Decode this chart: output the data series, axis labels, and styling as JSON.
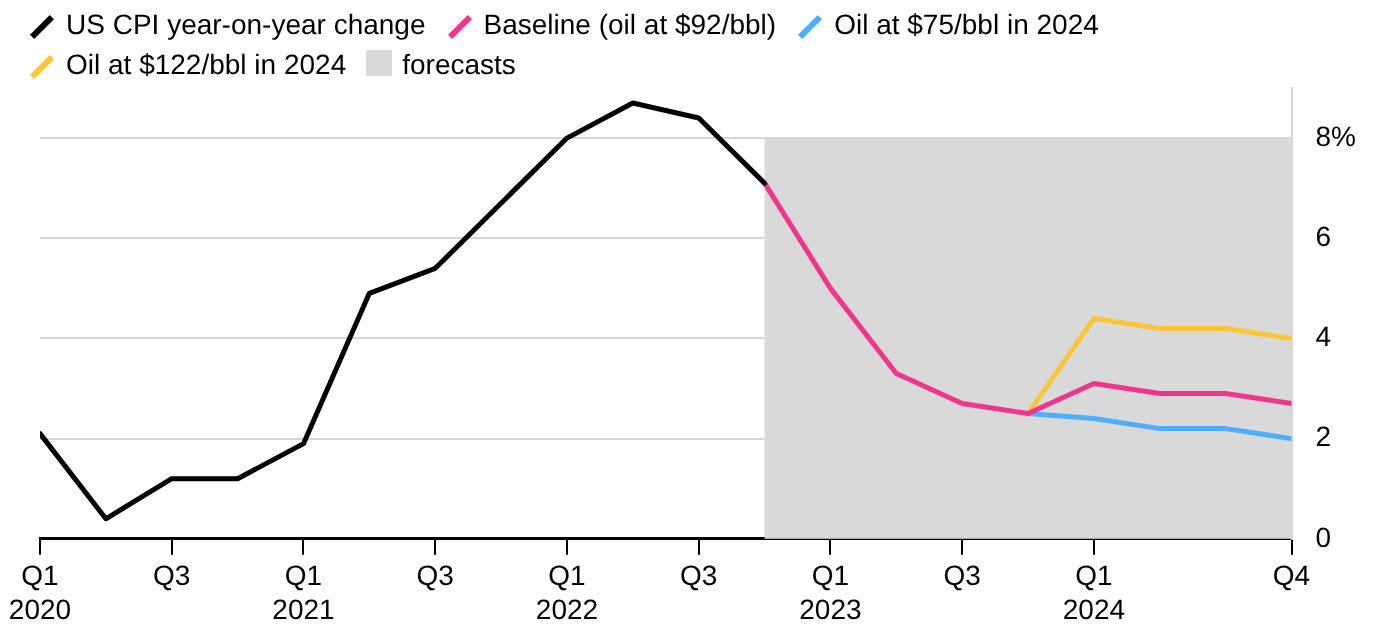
{
  "chart_data": {
    "type": "line",
    "x": [
      "2020-01",
      "2020-04",
      "2020-07",
      "2020-10",
      "2021-01",
      "2021-04",
      "2021-07",
      "2021-10",
      "2022-01",
      "2022-04",
      "2022-07",
      "2022-10",
      "2023-01",
      "2023-04",
      "2023-07",
      "2023-10",
      "2024-01",
      "2024-04",
      "2024-07",
      "2024-10"
    ],
    "xlim": [
      "2020-01",
      "2024-10"
    ],
    "xticks": [
      {
        "value": "2020-01",
        "label": "Q1 2020"
      },
      {
        "value": "2020-07",
        "label": "Q3"
      },
      {
        "value": "2021-01",
        "label": "Q1 2021"
      },
      {
        "value": "2021-07",
        "label": "Q3"
      },
      {
        "value": "2022-01",
        "label": "Q1 2022"
      },
      {
        "value": "2022-07",
        "label": "Q3"
      },
      {
        "value": "2023-01",
        "label": "Q1 2023"
      },
      {
        "value": "2023-07",
        "label": "Q3"
      },
      {
        "value": "2024-01",
        "label": "Q1 2024"
      },
      {
        "value": "2024-10",
        "label": "Q4"
      }
    ],
    "series": [
      {
        "name": "US CPI year-on-year change",
        "color": "#000000",
        "values": [
          2.1,
          0.4,
          1.2,
          1.2,
          1.9,
          4.9,
          5.4,
          6.7,
          8.0,
          8.7,
          8.4,
          7.1,
          null,
          null,
          null,
          null,
          null,
          null,
          null,
          null
        ]
      },
      {
        "name": "Baseline (oil at $92/bbl)",
        "color": "#f0368a",
        "values": [
          null,
          null,
          null,
          null,
          null,
          null,
          null,
          null,
          null,
          null,
          null,
          7.1,
          5.0,
          3.3,
          2.7,
          2.5,
          3.1,
          2.9,
          2.9,
          2.7
        ]
      },
      {
        "name": "Oil at $75/bbl in 2024",
        "color": "#4faefc",
        "values": [
          null,
          null,
          null,
          null,
          null,
          null,
          null,
          null,
          null,
          null,
          null,
          null,
          null,
          null,
          null,
          2.5,
          2.4,
          2.2,
          2.2,
          2.0
        ]
      },
      {
        "name": "Oil at $122/bbl in 2024",
        "color": "#fbc537",
        "values": [
          null,
          null,
          null,
          null,
          null,
          null,
          null,
          null,
          null,
          null,
          null,
          null,
          null,
          null,
          null,
          2.5,
          4.4,
          4.2,
          4.2,
          4.0
        ]
      }
    ],
    "bands": [
      {
        "axis": "x",
        "from": "2022-10",
        "to": "2024-10",
        "label": "forecasts",
        "color": "#d9d9d9"
      }
    ],
    "ylim": [
      0,
      9
    ],
    "yticks": [
      0,
      2,
      4,
      6,
      {
        "value": 8,
        "label": "8%"
      }
    ],
    "grid": "y",
    "legend": "top left",
    "marker": "none",
    "line_style": "solid"
  }
}
